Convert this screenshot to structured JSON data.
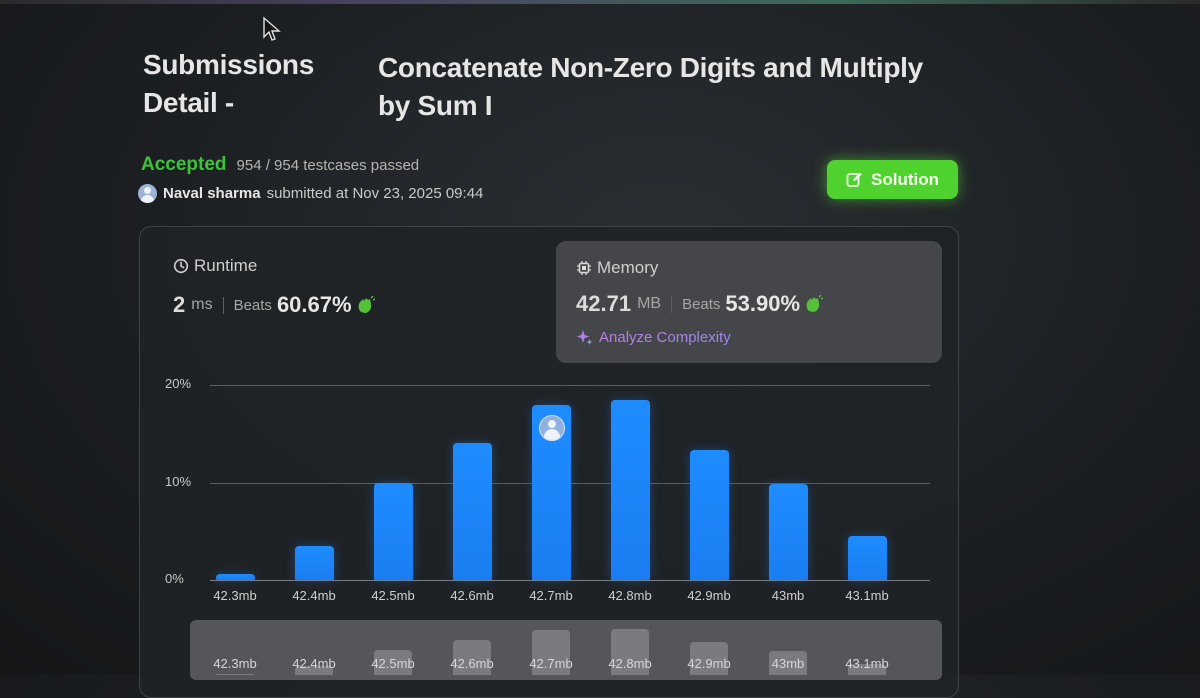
{
  "header": {
    "title_prefix": "Submissions Detail -",
    "problem_title": "Concatenate Non-Zero Digits and Multiply by Sum I"
  },
  "status": {
    "result": "Accepted",
    "testcases": "954 / 954 testcases passed",
    "user": "Naval sharma",
    "submitted_text": "submitted at Nov 23, 2025 09:44"
  },
  "actions": {
    "solution_label": "Solution"
  },
  "runtime": {
    "label": "Runtime",
    "value": "2",
    "unit": "ms",
    "beats_label": "Beats",
    "beats_value": "60.67%"
  },
  "memory": {
    "label": "Memory",
    "value": "42.71",
    "unit": "MB",
    "beats_label": "Beats",
    "beats_value": "53.90%",
    "analyze_label": "Analyze Complexity"
  },
  "colors": {
    "accent_green": "#3ec23a",
    "button_green": "#4fd22e",
    "bar_blue": "#1e8cff"
  },
  "chart_data": {
    "type": "bar",
    "categories": [
      "42.3mb",
      "42.4mb",
      "42.5mb",
      "42.6mb",
      "42.7mb",
      "42.8mb",
      "42.9mb",
      "43mb",
      "43.1mb"
    ],
    "values": [
      0.6,
      3.5,
      10,
      14.1,
      17.9,
      18.5,
      13.3,
      9.8,
      4.5
    ],
    "ytick_labels": [
      "20%",
      "10%",
      "0%"
    ],
    "ylim": [
      0,
      20
    ],
    "highlight_category": "42.7mb",
    "grid": true,
    "overview_categories": [
      "42.3mb",
      "42.4mb",
      "42.5mb",
      "42.6mb",
      "42.7mb",
      "42.8mb",
      "42.9mb",
      "43mb",
      "43.1mb"
    ]
  }
}
